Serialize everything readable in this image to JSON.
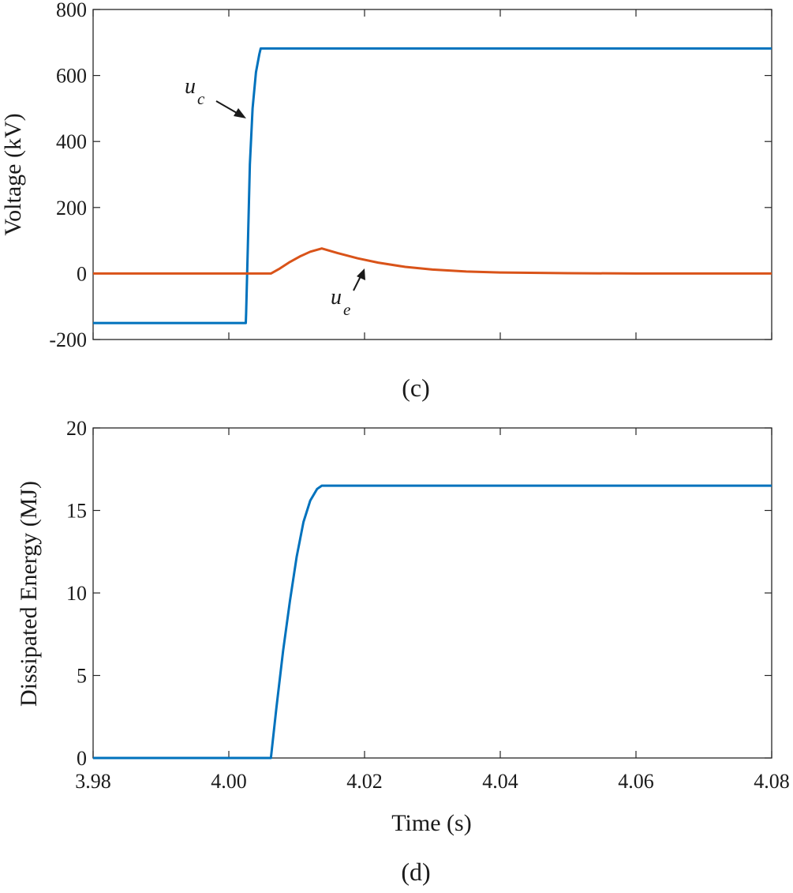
{
  "chart_data": [
    {
      "type": "line",
      "panel": "(c)",
      "caption": "(c)",
      "xlabel": "",
      "ylabel": "Voltage (kV)",
      "xlim": [
        3.98,
        4.08
      ],
      "ylim": [
        -200,
        800
      ],
      "xticks": [
        3.98,
        4.0,
        4.02,
        4.04,
        4.06,
        4.08
      ],
      "yticks": [
        -200,
        0,
        200,
        400,
        600,
        800
      ],
      "ytick_labels": [
        "-200",
        "0",
        "200",
        "400",
        "600",
        "800"
      ],
      "grid": false,
      "series": [
        {
          "name": "u_c",
          "color": "#0072BD",
          "x": [
            3.98,
            4.0025,
            4.00255,
            4.0028,
            4.0031,
            4.0035,
            4.004,
            4.0045,
            4.0047,
            4.08
          ],
          "y": [
            -150,
            -150,
            -120,
            80,
            330,
            500,
            610,
            665,
            682,
            682
          ]
        },
        {
          "name": "u_e",
          "color": "#D95319",
          "x": [
            3.98,
            4.0062,
            4.0075,
            4.009,
            4.0105,
            4.012,
            4.0137,
            4.016,
            4.019,
            4.022,
            4.026,
            4.03,
            4.035,
            4.04,
            4.05,
            4.06,
            4.08
          ],
          "y": [
            0,
            0,
            15,
            35,
            52,
            66,
            76,
            62,
            46,
            33,
            20,
            12,
            6,
            3,
            1,
            0,
            0
          ]
        }
      ],
      "annotations": [
        {
          "base": "u",
          "sub": "c",
          "target_series": "u_c"
        },
        {
          "base": "u",
          "sub": "e",
          "target_series": "u_e"
        }
      ]
    },
    {
      "type": "line",
      "panel": "(d)",
      "caption": "(d)",
      "xlabel": "Time (s)",
      "ylabel": "Dissipated Energy (MJ)",
      "xlim": [
        3.98,
        4.08
      ],
      "ylim": [
        0,
        20
      ],
      "xticks": [
        3.98,
        4.0,
        4.02,
        4.04,
        4.06,
        4.08
      ],
      "xtick_labels": [
        "3.98",
        "4.00",
        "4.02",
        "4.04",
        "4.06",
        "4.08"
      ],
      "yticks": [
        0,
        5,
        10,
        15,
        20
      ],
      "ytick_labels": [
        "0",
        "5",
        "10",
        "15",
        "20"
      ],
      "grid": false,
      "series": [
        {
          "name": "Dissipated Energy",
          "color": "#0072BD",
          "x": [
            3.98,
            4.0062,
            4.007,
            4.008,
            4.009,
            4.01,
            4.011,
            4.012,
            4.013,
            4.0137,
            4.03,
            4.08
          ],
          "y": [
            0,
            0,
            3.0,
            6.5,
            9.5,
            12.2,
            14.3,
            15.6,
            16.3,
            16.5,
            16.5,
            16.5
          ]
        }
      ]
    }
  ]
}
